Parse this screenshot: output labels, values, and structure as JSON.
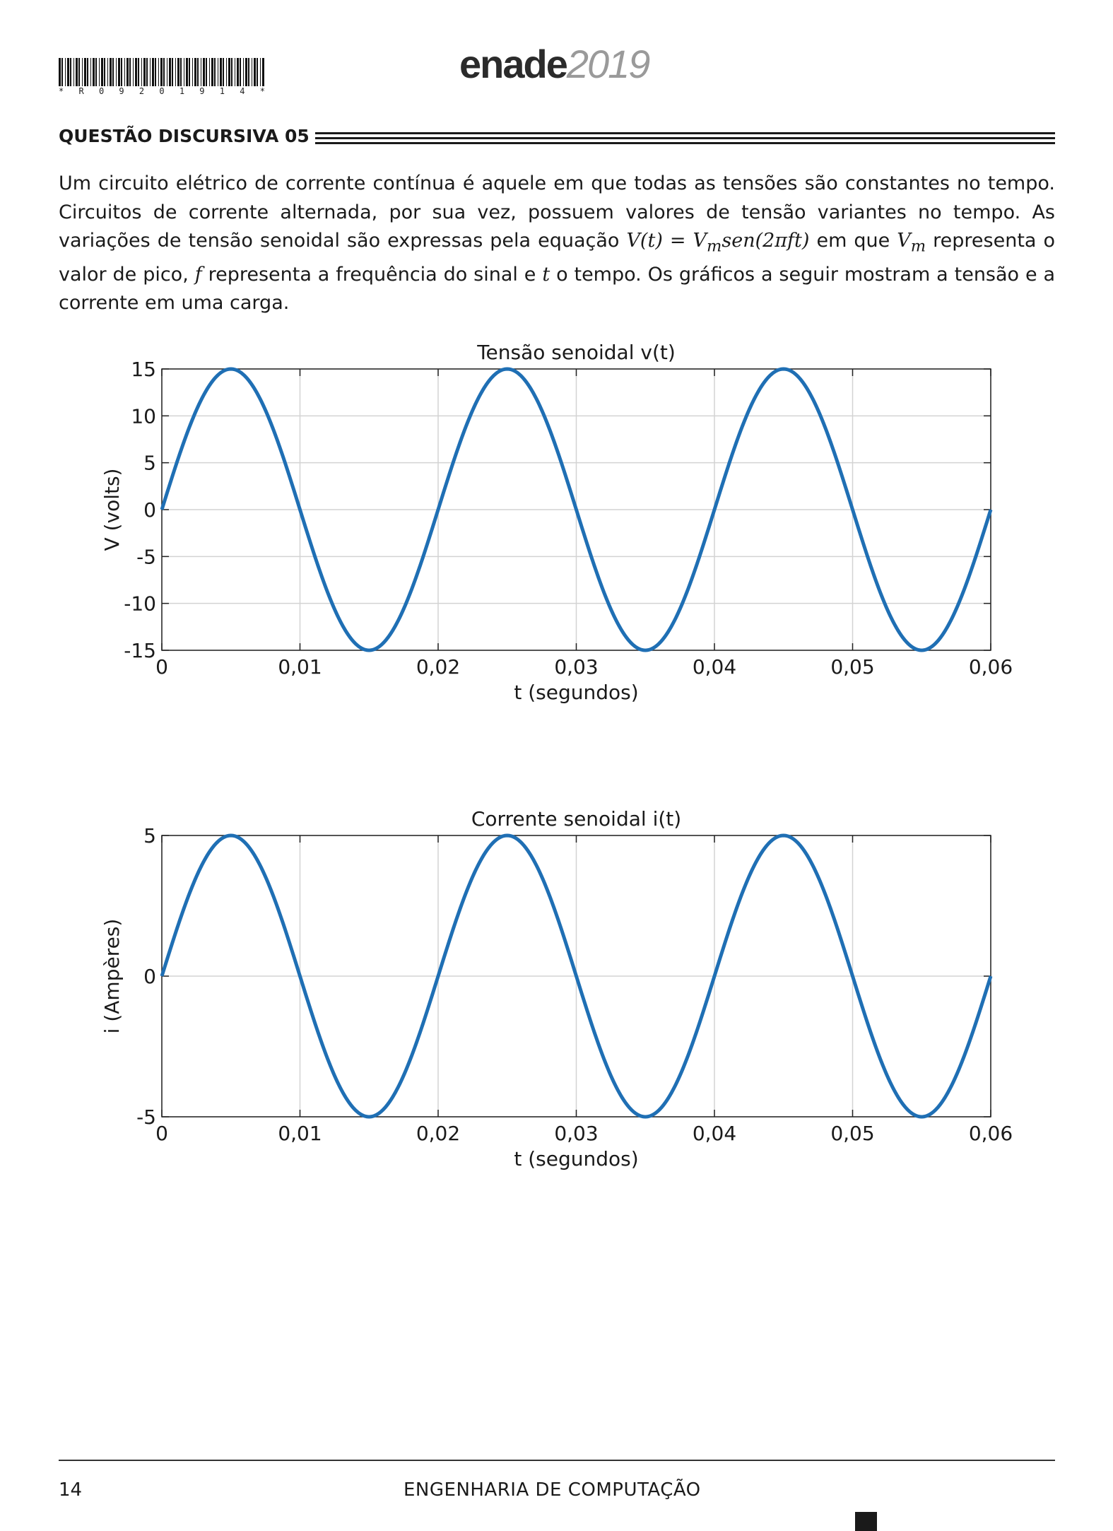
{
  "header": {
    "barcode_text": "* R 0 9 2 0 1 9 1 4 *",
    "logo_main": "enade",
    "logo_year": "2019"
  },
  "question": {
    "title": "QUESTÃO DISCURSIVA 05",
    "paragraph": {
      "p1": "Um circuito elétrico de corrente contínua é aquele em que todas as tensões são constantes no tempo. Circuitos de corrente alternada, por sua vez, possuem valores de tensão variantes no tempo. As variações de tensão senoidal são expressas pela equação ",
      "eq_lhs": "V(t) =",
      "eq_v": "V",
      "eq_sub": "m",
      "eq_rhs": "sen(2πft)",
      "p2": " em que ",
      "vm_v": "V",
      "vm_sub": "m",
      "p3": " representa o valor de pico, ",
      "f": "f",
      "p4": " representa a frequência do sinal e ",
      "t": "t",
      "p5": " o tempo. Os gráficos a seguir mostram a tensão e a corrente em uma carga."
    }
  },
  "chart_data": [
    {
      "type": "line",
      "title": "Tensão senoidal v(t)",
      "xlabel": "t (segundos)",
      "ylabel": "V (volts)",
      "xlim": [
        0,
        0.06
      ],
      "ylim": [
        -15,
        15
      ],
      "xticks": [
        0,
        0.01,
        0.02,
        0.03,
        0.04,
        0.05,
        0.06
      ],
      "xtick_labels": [
        "0",
        "0,01",
        "0,02",
        "0,03",
        "0,04",
        "0,05",
        "0,06"
      ],
      "yticks": [
        15,
        10,
        5,
        0,
        -5,
        -10,
        -15
      ],
      "ytick_labels": [
        "15",
        "10",
        "5",
        "0",
        "-5",
        "-10",
        "-15"
      ],
      "grid": true,
      "color": "#1f6fb4",
      "series": [
        {
          "x": [
            0,
            0.0025,
            0.005,
            0.0075,
            0.01,
            0.0125,
            0.015,
            0.0175,
            0.02,
            0.0225,
            0.025,
            0.0275,
            0.03,
            0.0325,
            0.035,
            0.0375,
            0.04,
            0.0425,
            0.045,
            0.0475,
            0.05,
            0.0525,
            0.055,
            0.0575,
            0.06
          ],
          "y": [
            0,
            10.6,
            15,
            10.6,
            0,
            -10.6,
            -15,
            -10.6,
            0,
            10.6,
            15,
            10.6,
            0,
            -10.6,
            -15,
            -10.6,
            0,
            10.6,
            15,
            10.6,
            0,
            -10.6,
            -15,
            -10.6,
            0
          ]
        }
      ]
    },
    {
      "type": "line",
      "title": "Corrente senoidal i(t)",
      "xlabel": "t (segundos)",
      "ylabel": "i (Ampères)",
      "xlim": [
        0,
        0.06
      ],
      "ylim": [
        -5,
        5
      ],
      "xticks": [
        0,
        0.01,
        0.02,
        0.03,
        0.04,
        0.05,
        0.06
      ],
      "xtick_labels": [
        "0",
        "0,01",
        "0,02",
        "0,03",
        "0,04",
        "0,05",
        "0,06"
      ],
      "yticks": [
        5,
        0,
        -5
      ],
      "ytick_labels": [
        "5",
        "0",
        "-5"
      ],
      "grid": true,
      "color": "#1f6fb4",
      "series": [
        {
          "x": [
            0,
            0.0025,
            0.005,
            0.0075,
            0.01,
            0.0125,
            0.015,
            0.0175,
            0.02,
            0.0225,
            0.025,
            0.0275,
            0.03,
            0.0325,
            0.035,
            0.0375,
            0.04,
            0.0425,
            0.045,
            0.0475,
            0.05,
            0.0525,
            0.055,
            0.0575,
            0.06
          ],
          "y": [
            0,
            3.54,
            5,
            3.54,
            0,
            -3.54,
            -5,
            -3.54,
            0,
            3.54,
            5,
            3.54,
            0,
            -3.54,
            -5,
            -3.54,
            0,
            3.54,
            5,
            3.54,
            0,
            -3.54,
            -5,
            -3.54,
            0
          ]
        }
      ]
    }
  ],
  "footer": {
    "page_number": "14",
    "course": "ENGENHARIA DE COMPUTAÇÃO"
  }
}
